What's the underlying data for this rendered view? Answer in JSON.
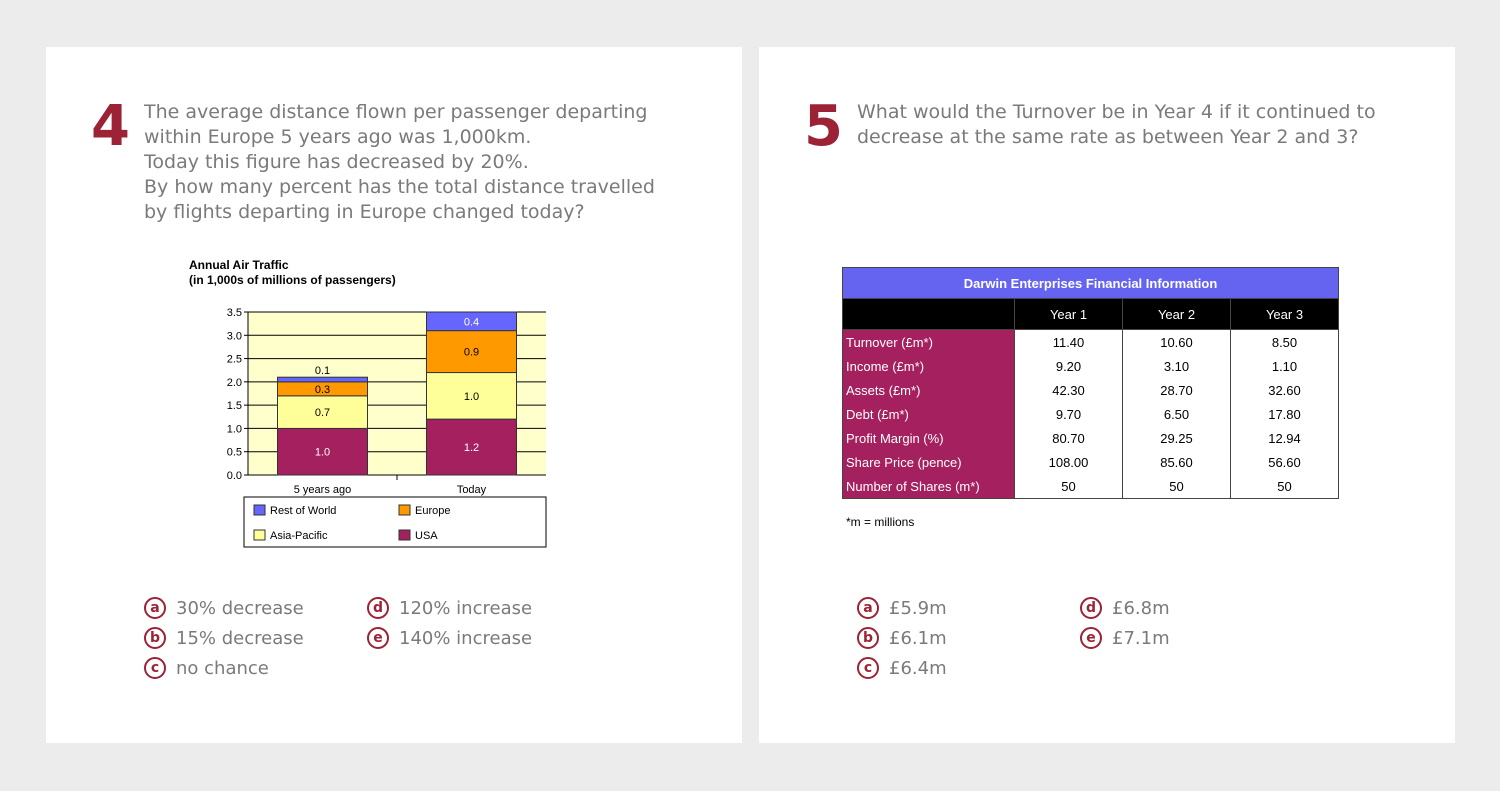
{
  "q4": {
    "number": "4",
    "lines": [
      "The average distance flown per passenger departing",
      "within Europe 5 years ago was 1,000km.",
      "Today this figure has decreased by 20%.",
      "By how many percent has the total distance travelled",
      "by flights departing in Europe changed today?"
    ],
    "options": [
      {
        "letter": "a",
        "text": "30% decrease"
      },
      {
        "letter": "b",
        "text": "15% decrease"
      },
      {
        "letter": "c",
        "text": "no chance"
      },
      {
        "letter": "d",
        "text": "120% increase"
      },
      {
        "letter": "e",
        "text": "140% increase"
      }
    ]
  },
  "chart_data": {
    "type": "bar",
    "stacked": true,
    "title": "Annual Air Traffic",
    "subtitle": "(in 1,000s of millions of passengers)",
    "categories": [
      "5 years ago",
      "Today"
    ],
    "series": [
      {
        "name": "USA",
        "values": [
          1.0,
          1.2
        ],
        "labels": [
          "1.0",
          "1.2"
        ],
        "color": "#a4205e"
      },
      {
        "name": "Asia-Pacific",
        "values": [
          0.7,
          1.0
        ],
        "labels": [
          "0.7",
          "1.0"
        ],
        "color": "#ffff99"
      },
      {
        "name": "Europe",
        "values": [
          0.3,
          0.9
        ],
        "labels": [
          "0.3",
          "0.9"
        ],
        "color": "#ff9900"
      },
      {
        "name": "Rest of World",
        "values": [
          0.1,
          0.4
        ],
        "labels": [
          "0.1",
          "0.4"
        ],
        "color": "#6666ff"
      }
    ],
    "legend_order": [
      "Rest of World",
      "Europe",
      "Asia-Pacific",
      "USA"
    ],
    "yticks": [
      "0.0",
      "0.5",
      "1.0",
      "1.5",
      "2.0",
      "2.5",
      "3.0",
      "3.5"
    ],
    "ylim": [
      0,
      3.5
    ],
    "grid": true,
    "plot_background": "#ffffcc",
    "legend_position": "bottom"
  },
  "q5": {
    "number": "5",
    "lines": [
      "What would the Turnover be in Year 4 if it continued to",
      "decrease at the same rate as between Year 2 and 3?"
    ],
    "table": {
      "title": "Darwin Enterprises Financial Information",
      "columns": [
        "Year 1",
        "Year 2",
        "Year 3"
      ],
      "rows": [
        {
          "label": "Turnover (£m*)",
          "values": [
            "11.40",
            "10.60",
            "8.50"
          ]
        },
        {
          "label": "Income (£m*)",
          "values": [
            "9.20",
            "3.10",
            "1.10"
          ]
        },
        {
          "label": "Assets (£m*)",
          "values": [
            "42.30",
            "28.70",
            "32.60"
          ]
        },
        {
          "label": "Debt (£m*)",
          "values": [
            "9.70",
            "6.50",
            "17.80"
          ]
        },
        {
          "label": "Profit Margin (%)",
          "values": [
            "80.70",
            "29.25",
            "12.94"
          ]
        },
        {
          "label": "Share Price (pence)",
          "values": [
            "108.00",
            "85.60",
            "56.60"
          ]
        },
        {
          "label": "Number of Shares (m*)",
          "values": [
            "50",
            "50",
            "50"
          ]
        }
      ],
      "footnote": "*m = millions"
    },
    "options": [
      {
        "letter": "a",
        "text": "£5.9m"
      },
      {
        "letter": "b",
        "text": "£6.1m"
      },
      {
        "letter": "c",
        "text": "£6.4m"
      },
      {
        "letter": "d",
        "text": "£6.8m"
      },
      {
        "letter": "e",
        "text": "£7.1m"
      }
    ]
  },
  "colors": {
    "accent": "#9b2335",
    "question_text": "#7a7a7a",
    "table_header": "#6464f0",
    "row_label": "#a4205e"
  }
}
